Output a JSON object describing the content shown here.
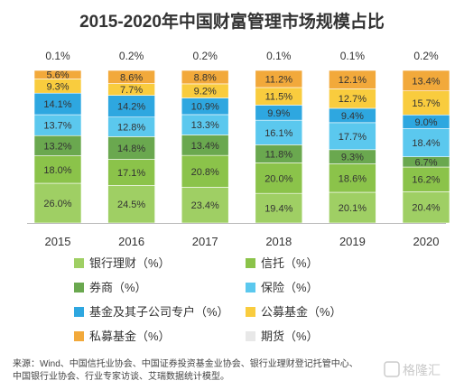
{
  "chart_data": {
    "type": "bar",
    "stacked": true,
    "title": "2015-2020年中国财富管理市场规模占比",
    "categories": [
      "2015",
      "2016",
      "2017",
      "2018",
      "2019",
      "2020"
    ],
    "top_labels": [
      "0.1%",
      "0.2%",
      "0.2%",
      "0.1%",
      "0.1%",
      "0.2%"
    ],
    "series": [
      {
        "name": "银行理财（%）",
        "color": "#9fcf64",
        "values": [
          26.0,
          24.5,
          23.4,
          19.4,
          20.1,
          20.4
        ],
        "labels": [
          "26.0%",
          "24.5%",
          "23.4%",
          "19.4%",
          "20.1%",
          "20.4%"
        ]
      },
      {
        "name": "信托（%）",
        "color": "#8bc34a",
        "values": [
          18.0,
          17.1,
          20.8,
          20.0,
          18.6,
          16.2
        ],
        "labels": [
          "18.0%",
          "17.1%",
          "20.8%",
          "20.0%",
          "18.6%",
          "16.2%"
        ]
      },
      {
        "name": "券商（%）",
        "color": "#6aa84f",
        "values": [
          13.2,
          14.8,
          13.4,
          11.8,
          9.3,
          6.7
        ],
        "labels": [
          "13.2%",
          "14.8%",
          "13.4%",
          "11.8%",
          "9.3%",
          "6.7%"
        ]
      },
      {
        "name": "保险（%）",
        "color": "#5bc8ee",
        "values": [
          13.7,
          12.8,
          13.3,
          16.1,
          17.7,
          18.4
        ],
        "labels": [
          "13.7%",
          "12.8%",
          "13.3%",
          "16.1%",
          "17.7%",
          "18.4%"
        ]
      },
      {
        "name": "基金及其子公司专户（%）",
        "color": "#2ea7e0",
        "values": [
          14.1,
          14.2,
          10.9,
          9.9,
          9.4,
          9.0
        ],
        "labels": [
          "14.1%",
          "14.2%",
          "10.9%",
          "9.9%",
          "9.4%",
          "9.0%"
        ]
      },
      {
        "name": "公募基金（%）",
        "color": "#f9cc3e",
        "values": [
          9.3,
          7.7,
          9.2,
          11.5,
          12.7,
          15.7
        ],
        "labels": [
          "9.3%",
          "7.7%",
          "9.2%",
          "11.5%",
          "12.7%",
          "15.7%"
        ]
      },
      {
        "name": "私募基金（%）",
        "color": "#f2a93b",
        "values": [
          5.6,
          8.6,
          8.8,
          11.2,
          12.1,
          13.4
        ],
        "labels": [
          "5.6%",
          "8.6%",
          "8.8%",
          "11.2%",
          "12.1%",
          "13.4%"
        ]
      },
      {
        "name": "期货（%）",
        "color": "#e8e8e8",
        "values": [
          0.1,
          0.2,
          0.2,
          0.1,
          0.1,
          0.2
        ],
        "labels": [
          "",
          "",
          "",
          "",
          "",
          ""
        ]
      }
    ],
    "ylim": [
      0,
      100
    ]
  },
  "source": {
    "line1": "来源：Wind、中国信托业协会、中国证券投资基金业协会、银行业理财登记托管中心、",
    "line2": "中国银行业协会、行业专家访谈、艾瑞数据统计模型。"
  },
  "watermark": "格隆汇"
}
